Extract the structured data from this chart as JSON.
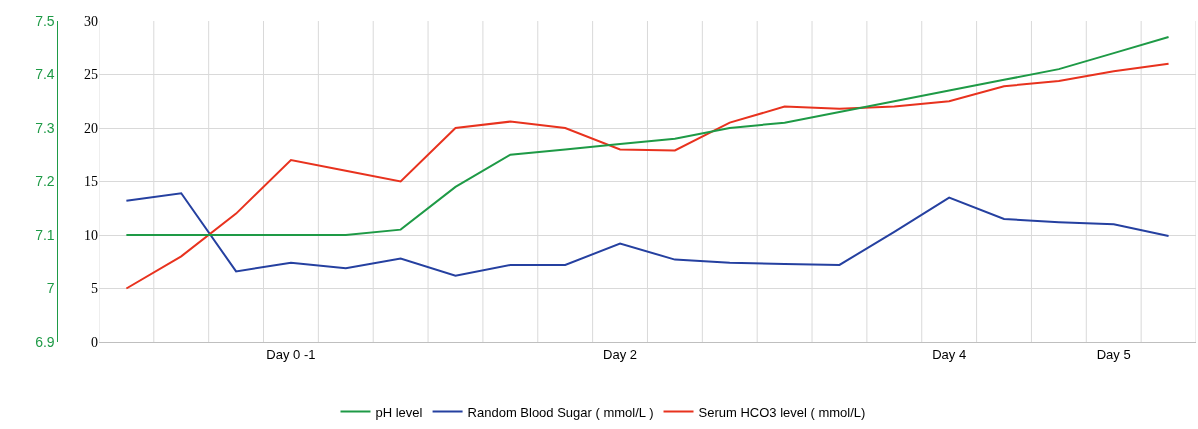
{
  "chart_data": {
    "type": "line",
    "categories": [
      null,
      null,
      null,
      "Day 0 -1",
      null,
      null,
      null,
      null,
      null,
      "Day 2",
      null,
      null,
      null,
      null,
      null,
      "Day 4",
      null,
      null,
      "Day 5",
      null
    ],
    "series": [
      {
        "name": "pH level",
        "color": "#1e9a46",
        "axis": "y2",
        "values": [
          7.1,
          7.1,
          7.1,
          7.1,
          7.1,
          7.11,
          7.19,
          7.25,
          7.26,
          7.27,
          7.28,
          7.3,
          7.31,
          7.33,
          7.35,
          7.37,
          7.39,
          7.41,
          7.44,
          7.47
        ]
      },
      {
        "name": "Random Blood Sugar ( mmol/L )",
        "color": "#2540a0",
        "values": [
          13.2,
          13.9,
          6.6,
          7.4,
          6.9,
          7.8,
          6.2,
          7.2,
          7.2,
          9.2,
          7.7,
          7.4,
          7.3,
          7.2,
          10.3,
          13.5,
          11.5,
          11.2,
          11.0,
          9.9
        ]
      },
      {
        "name": "Serum HCO3 level ( mmol/L)",
        "color": "#e8321e",
        "values": [
          5,
          8,
          12,
          17,
          16,
          15,
          20,
          20.6,
          20,
          18,
          17.9,
          20.5,
          22,
          21.8,
          22,
          22.5,
          23.9,
          24.4,
          25.3,
          26
        ]
      }
    ],
    "ylim": [
      0,
      30
    ],
    "yticks": [
      0,
      5,
      10,
      15,
      20,
      25,
      30
    ],
    "y2lim": [
      6.9,
      7.5
    ],
    "y2ticks": [
      6.9,
      7,
      7.1,
      7.2,
      7.3,
      7.4,
      7.5
    ],
    "grid": true,
    "legend": "bottom",
    "marker": "none",
    "line_style": "solid"
  }
}
